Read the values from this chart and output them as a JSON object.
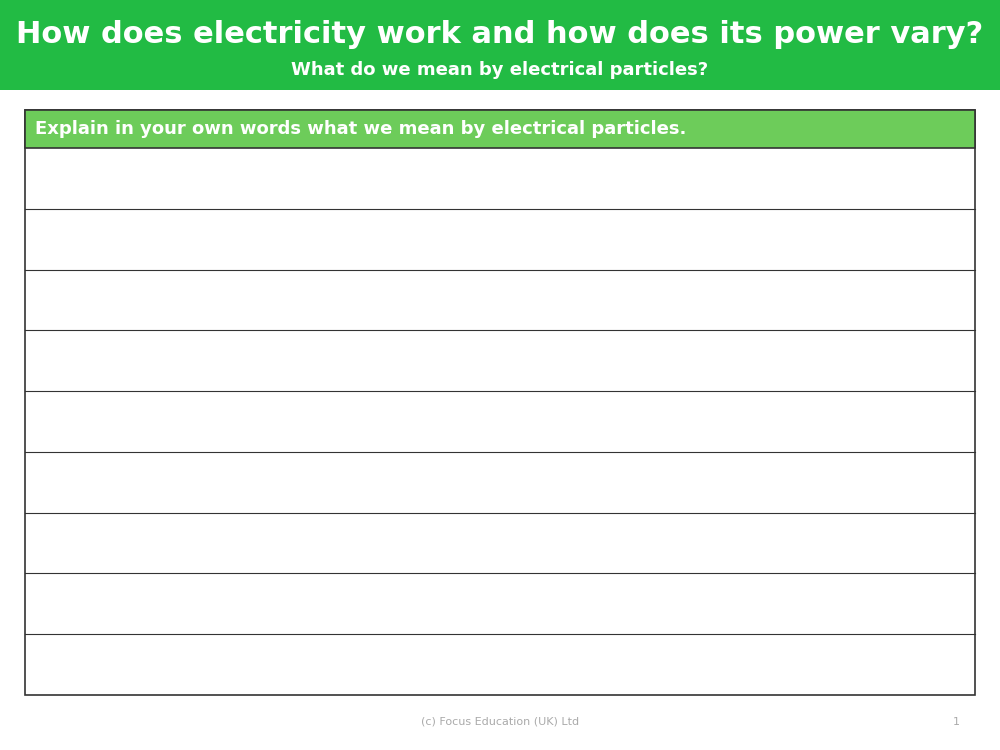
{
  "title_line1": "How does electricity work and how does its power vary?",
  "title_line2": "What do we mean by electrical particles?",
  "header_bg_color": "#22bb44",
  "section_header_text": "Explain in your own words what we mean by electrical particles.",
  "section_header_bg": "#6dcc5a",
  "section_header_text_color": "#ffffff",
  "title_text_color": "#ffffff",
  "num_lines": 9,
  "footer_text": "(c) Focus Education (UK) Ltd",
  "footer_number": "1",
  "footer_color": "#aaaaaa",
  "bg_color": "#ffffff",
  "border_color": "#333333"
}
